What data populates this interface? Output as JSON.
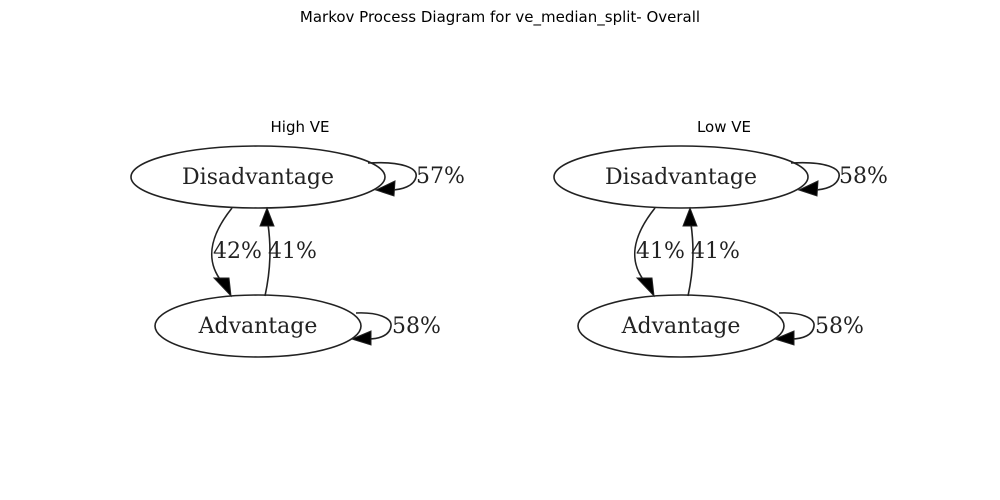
{
  "title": "Markov Process Diagram for ve_median_split- Overall",
  "panels": [
    {
      "title": "High VE",
      "nodes": {
        "disadvantage": "Disadvantage",
        "advantage": "Advantage"
      },
      "edges": {
        "disadvantage_self": "57%",
        "disadvantage_to_advantage": "42%",
        "advantage_to_disadvantage": "41%",
        "advantage_self": "58%"
      }
    },
    {
      "title": "Low VE",
      "nodes": {
        "disadvantage": "Disadvantage",
        "advantage": "Advantage"
      },
      "edges": {
        "disadvantage_self": "58%",
        "disadvantage_to_advantage": "41%",
        "advantage_to_disadvantage": "41%",
        "advantage_self": "58%"
      }
    }
  ]
}
